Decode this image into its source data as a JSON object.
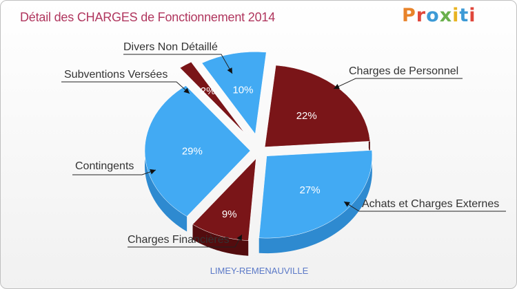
{
  "header": {
    "title": "Détail des CHARGES de Fonctionnement 2014",
    "logo": [
      "P",
      "r",
      "o",
      "x",
      "i",
      "t",
      "i"
    ]
  },
  "location": "LIMEY-REMENAUVILLE",
  "colors": {
    "red": "#7a1518",
    "red_dark": "#530c0e",
    "blue": "#42aaf3",
    "blue_dark": "#2e8ad0"
  },
  "chart_data": {
    "type": "pie",
    "title": "Détail des CHARGES de Fonctionnement 2014",
    "slices": [
      {
        "name": "Charges de Personnel",
        "value": 22,
        "label": "22%",
        "color": "red"
      },
      {
        "name": "Achats et Charges Externes",
        "value": 27,
        "label": "27%",
        "color": "blue"
      },
      {
        "name": "Charges Financières",
        "value": 9,
        "label": "9%",
        "color": "red"
      },
      {
        "name": "Contingents",
        "value": 29,
        "label": "29%",
        "color": "blue"
      },
      {
        "name": "Subventions Versées",
        "value": 2,
        "label": "2%",
        "color": "red"
      },
      {
        "name": "Divers Non Détaillé",
        "value": 10,
        "label": "10%",
        "color": "blue"
      }
    ]
  }
}
